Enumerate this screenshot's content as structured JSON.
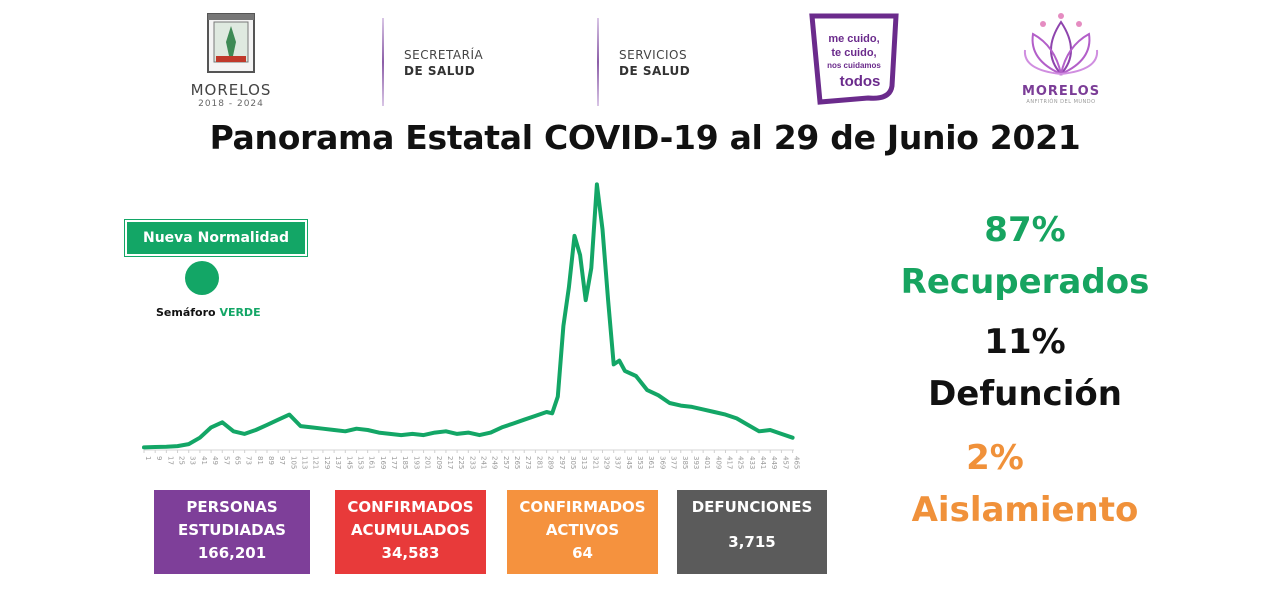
{
  "header": {
    "state_name": "MORELOS",
    "state_years": "2018 - 2024",
    "dept1_line1": "SECRETARÍA",
    "dept1_line2": "DE SALUD",
    "dept2_line1": "SERVICIOS",
    "dept2_line2": "DE SALUD",
    "slogan_line1": "me cuido,",
    "slogan_line2": "te cuido,",
    "slogan_line3": "nos cuidamos",
    "slogan_line4": "todos",
    "gov_name": "MORELOS",
    "gov_sub": "ANFITRIÓN DEL MUNDO"
  },
  "title": "Panorama Estatal COVID-19 al 29 de Junio 2021",
  "semaforo": {
    "badge": "Nueva Normalidad",
    "caption_prefix": "Semáforo",
    "caption_status": "VERDE",
    "color": "#13a666"
  },
  "stats": {
    "studied_label": "PERSONAS ESTUDIADAS",
    "studied_value": "166,201",
    "confirmed_label": "CONFIRMADOS ACUMULADOS",
    "confirmed_value": "34,583",
    "active_label": "CONFIRMADOS ACTIVOS",
    "active_value": "64",
    "deaths_label": "DEFUNCIONES",
    "deaths_value": "3,715"
  },
  "outcomes": {
    "recovered_pct": "87%",
    "recovered_label": "Recuperados",
    "death_pct": "11%",
    "death_label": "Defunción",
    "isolation_pct": "2%",
    "isolation_label": "Aislamiento"
  },
  "colors": {
    "green": "#13a666",
    "purple": "#7e3f99",
    "red": "#e83a3a",
    "orange": "#f5923e",
    "gray": "#5b5b5b"
  },
  "chart_data": {
    "type": "line",
    "series": [
      {
        "color": "#13a666",
        "x": [
          1,
          9,
          17,
          25,
          33,
          41,
          49,
          57,
          65,
          73,
          81,
          89,
          97,
          105,
          113,
          121,
          129,
          137,
          145,
          153,
          161,
          169,
          177,
          185,
          193,
          201,
          209,
          217,
          225,
          233,
          241,
          249,
          257,
          265,
          273,
          281,
          289,
          293,
          297,
          301,
          305,
          309,
          313,
          317,
          321,
          325,
          329,
          333,
          337,
          341,
          345,
          353,
          361,
          369,
          377,
          385,
          393,
          401,
          409,
          417,
          425,
          433,
          441,
          449,
          457,
          465
        ],
        "y": [
          0.5,
          0.8,
          1,
          1.5,
          3,
          8,
          16,
          20,
          13,
          11,
          14,
          18,
          22,
          26,
          17,
          16,
          15,
          14,
          13,
          15,
          14,
          12,
          11,
          10,
          11,
          10,
          12,
          13,
          11,
          12,
          10,
          12,
          16,
          19,
          22,
          25,
          28,
          27,
          40,
          95,
          125,
          165,
          150,
          115,
          140,
          205,
          170,
          115,
          65,
          68,
          60,
          56,
          45,
          41,
          35,
          33,
          32,
          30,
          28,
          26,
          23,
          18,
          13,
          14,
          11,
          8
        ]
      }
    ],
    "x_ticks": [
      1,
      9,
      17,
      25,
      33,
      41,
      49,
      57,
      65,
      73,
      81,
      89,
      97,
      105,
      113,
      121,
      129,
      137,
      145,
      153,
      161,
      169,
      177,
      185,
      193,
      201,
      209,
      217,
      225,
      233,
      241,
      249,
      257,
      265,
      273,
      281,
      289,
      297,
      305,
      313,
      321,
      329,
      337,
      345,
      353,
      361,
      369,
      377,
      385,
      393,
      401,
      409,
      417,
      425,
      433,
      441,
      449,
      457,
      465
    ],
    "xlim": [
      1,
      466
    ],
    "ylim": [
      0,
      210
    ],
    "xlabel": "",
    "ylabel": "",
    "grid": false,
    "legend": "none"
  }
}
